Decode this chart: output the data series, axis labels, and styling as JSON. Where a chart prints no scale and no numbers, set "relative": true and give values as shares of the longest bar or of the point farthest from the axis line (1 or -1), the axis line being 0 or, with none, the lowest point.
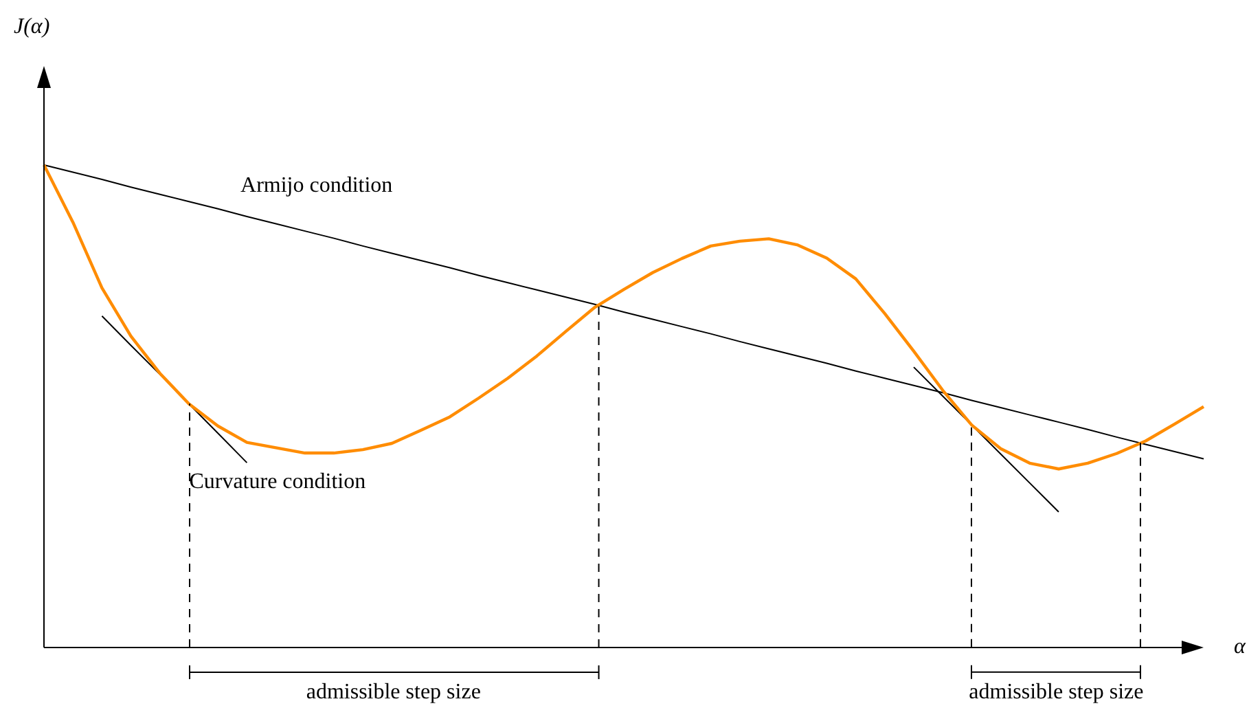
{
  "chart_data": {
    "type": "line",
    "relative": true,
    "xlabel": "α",
    "marker": "none",
    "categories": [
      null,
      null,
      null,
      null,
      null,
      null,
      null,
      null,
      null,
      null,
      null,
      null,
      null,
      null,
      null,
      null,
      null,
      null,
      null,
      null,
      null,
      null,
      null,
      null,
      null,
      null,
      null,
      null,
      null,
      null,
      null,
      null,
      null,
      null,
      null,
      null,
      null,
      null,
      null,
      null,
      null
    ],
    "series": [
      {
        "color": "#ff8c00",
        "values": [
          1.0,
          0.881,
          0.745,
          0.645,
          0.568,
          0.505,
          0.459,
          0.425,
          0.414,
          0.403,
          0.403,
          0.41,
          0.423,
          0.45,
          0.478,
          0.517,
          0.558,
          0.604,
          0.655,
          0.705,
          0.742,
          0.777,
          0.806,
          0.832,
          0.842,
          0.847,
          0.834,
          0.807,
          0.764,
          0.692,
          0.614,
          0.533,
          0.461,
          0.412,
          0.382,
          0.37,
          0.382,
          0.402,
          0.428,
          0.463,
          0.499
        ]
      },
      {
        "name": "Armijo condition",
        "color": "#000000",
        "values": [
          1.0,
          0.985,
          0.97,
          0.954,
          0.939,
          0.924,
          0.909,
          0.893,
          0.878,
          0.863,
          0.848,
          0.832,
          0.817,
          0.802,
          0.787,
          0.771,
          0.756,
          0.741,
          0.726,
          0.711,
          0.695,
          0.68,
          0.665,
          0.65,
          0.634,
          0.619,
          0.604,
          0.589,
          0.573,
          0.558,
          0.543,
          0.528,
          0.512,
          0.497,
          0.482,
          0.467,
          0.452,
          0.436,
          0.421,
          0.406,
          0.391
        ]
      },
      {
        "name": "Curvature condition",
        "color": "#000000",
        "values": [
          null,
          null,
          0.687,
          0.626,
          0.566,
          0.505,
          0.444,
          0.383,
          null,
          null,
          null,
          null,
          null,
          null,
          null,
          null,
          null,
          null,
          null,
          null,
          null,
          null,
          null,
          null,
          null,
          null,
          null,
          null,
          null,
          null,
          null,
          null,
          null,
          null,
          null,
          null,
          null,
          null,
          null,
          null,
          null
        ]
      },
      {
        "color": "#000000",
        "values": [
          null,
          null,
          null,
          null,
          null,
          null,
          null,
          null,
          null,
          null,
          null,
          null,
          null,
          null,
          null,
          null,
          null,
          null,
          null,
          null,
          null,
          null,
          null,
          null,
          null,
          null,
          null,
          null,
          null,
          null,
          0.581,
          0.521,
          0.461,
          0.401,
          0.341,
          0.281,
          null,
          null,
          null,
          null,
          null
        ]
      }
    ],
    "annotations": [
      "J(α)",
      "admissible step size",
      "admissible step size"
    ]
  }
}
